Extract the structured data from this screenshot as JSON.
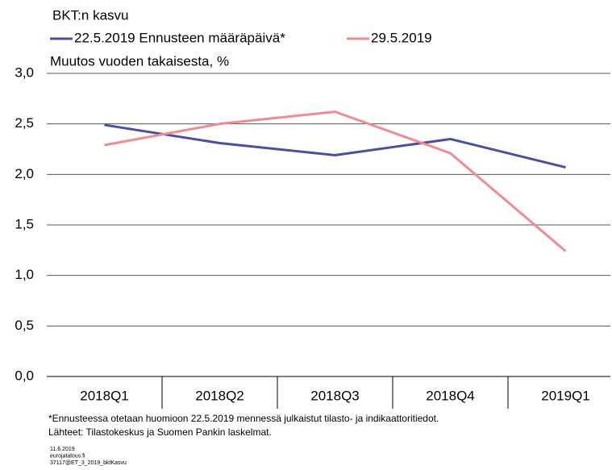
{
  "chart_data": {
    "type": "line",
    "title": "BKT:n kasvu",
    "ylabel": "Muutos vuoden takaisesta, %",
    "categories": [
      "2018Q1",
      "2018Q2",
      "2018Q3",
      "2018Q4",
      "2019Q1"
    ],
    "series": [
      {
        "name": "22.5.2019 Ennusteen määräpäivä*",
        "color": "#4b4f9e",
        "values": [
          2.49,
          2.31,
          2.19,
          2.35,
          2.07
        ]
      },
      {
        "name": "29.5.2019",
        "color": "#ee8c92",
        "values": [
          2.29,
          2.5,
          2.62,
          2.21,
          1.24
        ]
      }
    ],
    "ylim": [
      0,
      3
    ],
    "yticks": [
      {
        "value": 0,
        "label": "0,0"
      },
      {
        "value": 0.5,
        "label": "0,5"
      },
      {
        "value": 1,
        "label": "1,0"
      },
      {
        "value": 1.5,
        "label": "1,5"
      },
      {
        "value": 2,
        "label": "2,0"
      },
      {
        "value": 2.5,
        "label": "2,5"
      },
      {
        "value": 3,
        "label": "3,0"
      }
    ],
    "grid": true,
    "footnotes": [
      "*Ennusteessa otetaan huomioon 22.5.2019 mennessä julkaistut tilasto- ja indikaattoritiedot.",
      "Lähteet: Tilastokeskus ja Suomen Pankin laskelmat."
    ],
    "credits": [
      "11.6.2019",
      "eurojatalous.fi",
      "37117@ET_3_2019_bktKasvu"
    ]
  }
}
